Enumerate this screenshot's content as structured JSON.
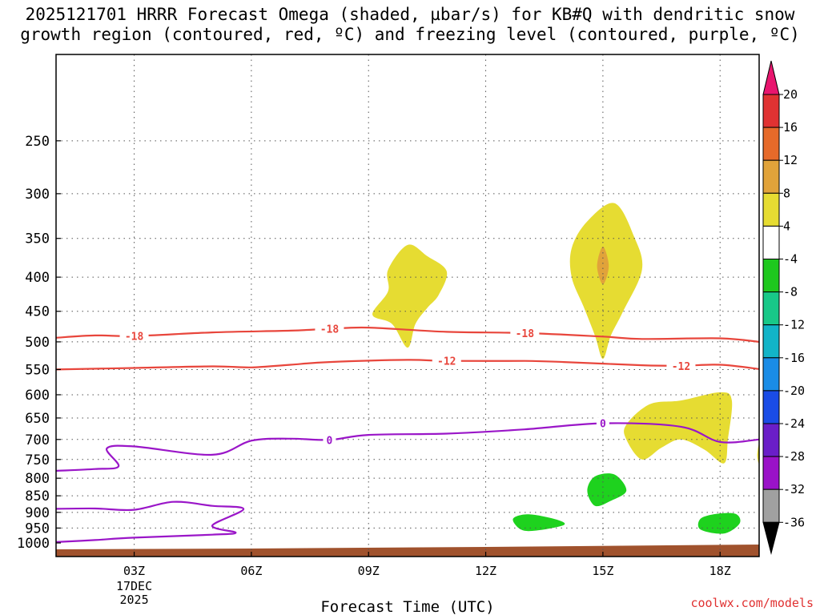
{
  "title": {
    "line1": "2025121701 HRRR Forecast Omega (shaded, µbar/s) for KB#Q with dendritic snow",
    "line2": "growth region (contoured, red, ºC) and freezing level (contoured, purple, ºC)"
  },
  "credit": "coolwx.com/models",
  "chart_data": {
    "type": "heatmap",
    "xlabel": "Forecast Time (UTC)",
    "ylabel": "",
    "x_units": "hours since 2025-12-17 00Z",
    "xlim": [
      1,
      19
    ],
    "ylim_hPa": [
      1000,
      200
    ],
    "x_ticks": [
      {
        "hour": 3,
        "label": "03Z",
        "sub": [
          "17DEC",
          "2025"
        ]
      },
      {
        "hour": 6,
        "label": "06Z"
      },
      {
        "hour": 9,
        "label": "09Z"
      },
      {
        "hour": 12,
        "label": "12Z"
      },
      {
        "hour": 15,
        "label": "15Z"
      },
      {
        "hour": 18,
        "label": "18Z"
      }
    ],
    "y_ticks": [
      250,
      300,
      350,
      400,
      450,
      500,
      550,
      600,
      650,
      700,
      750,
      800,
      850,
      900,
      950,
      1000
    ],
    "grid": true,
    "temperature_contours_red": [
      {
        "label": "-18",
        "label_at": [
          [
            3,
            490
          ],
          [
            8,
            478
          ],
          [
            13,
            485
          ]
        ],
        "points": [
          [
            1,
            493
          ],
          [
            2,
            489
          ],
          [
            3,
            490
          ],
          [
            5,
            484
          ],
          [
            7,
            481
          ],
          [
            8,
            478
          ],
          [
            9,
            476
          ],
          [
            11,
            483
          ],
          [
            13,
            485
          ],
          [
            15,
            491
          ],
          [
            16,
            495
          ],
          [
            18,
            494
          ],
          [
            19,
            500
          ]
        ]
      },
      {
        "label": "-12",
        "label_at": [
          [
            11,
            534
          ],
          [
            17,
            543
          ]
        ],
        "points": [
          [
            1,
            550
          ],
          [
            3,
            547
          ],
          [
            5,
            544
          ],
          [
            6,
            546
          ],
          [
            7,
            541
          ],
          [
            8,
            536
          ],
          [
            10,
            532
          ],
          [
            11,
            534
          ],
          [
            13,
            534
          ],
          [
            14,
            536
          ],
          [
            16,
            542
          ],
          [
            17,
            543
          ],
          [
            18,
            541
          ],
          [
            19,
            549
          ]
        ]
      }
    ],
    "freezing_level_purple": [
      {
        "label": "0",
        "label_at": [
          [
            8,
            701
          ],
          [
            15,
            662
          ]
        ],
        "points": [
          [
            1,
            780
          ],
          [
            2,
            775
          ],
          [
            2.6,
            768
          ],
          [
            2.3,
            722
          ],
          [
            3,
            717
          ],
          [
            5,
            738
          ],
          [
            6,
            703
          ],
          [
            7,
            698
          ],
          [
            8,
            701
          ],
          [
            9,
            689
          ],
          [
            11,
            686
          ],
          [
            13,
            676
          ],
          [
            15,
            662
          ],
          [
            17,
            670
          ],
          [
            18,
            706
          ],
          [
            19,
            700
          ]
        ]
      },
      {
        "label": "",
        "label_at": [],
        "points": [
          [
            1,
            889
          ],
          [
            2,
            888
          ],
          [
            3,
            892
          ],
          [
            4,
            868
          ],
          [
            5,
            880
          ],
          [
            5.8,
            890
          ],
          [
            5,
            942
          ],
          [
            5.6,
            965
          ],
          [
            5,
            972
          ],
          [
            3,
            982
          ],
          [
            2,
            990
          ],
          [
            1,
            997
          ]
        ]
      }
    ],
    "omega_shaded": [
      {
        "value_range": "4 to 8",
        "color": "#e6dc32",
        "polygon": [
          [
            9.1,
            455
          ],
          [
            9.5,
            420
          ],
          [
            9.5,
            390
          ],
          [
            10,
            358
          ],
          [
            10.5,
            372
          ],
          [
            11,
            392
          ],
          [
            10.8,
            425
          ],
          [
            10.5,
            445
          ],
          [
            10.2,
            470
          ],
          [
            10,
            510
          ],
          [
            9.6,
            470
          ]
        ]
      },
      {
        "value_range": "4 to 8",
        "color": "#e6dc32",
        "polygon": [
          [
            14.2,
            362
          ],
          [
            14.6,
            330
          ],
          [
            15.3,
            310
          ],
          [
            15.8,
            348
          ],
          [
            16,
            390
          ],
          [
            15.5,
            452
          ],
          [
            15.2,
            490
          ],
          [
            15,
            530
          ],
          [
            14.8,
            490
          ],
          [
            14.5,
            442
          ],
          [
            14.2,
            400
          ]
        ]
      },
      {
        "value_range": "8 to 12",
        "color": "#e1a33a",
        "polygon": [
          [
            15,
            360
          ],
          [
            15.15,
            385
          ],
          [
            15,
            410
          ],
          [
            14.85,
            385
          ]
        ]
      },
      {
        "value_range": "4 to 8",
        "color": "#e6dc32",
        "polygon": [
          [
            15.6,
            665
          ],
          [
            16.2,
            620
          ],
          [
            17,
            612
          ],
          [
            18,
            595
          ],
          [
            18.3,
            612
          ],
          [
            18.2,
            700
          ],
          [
            18.1,
            760
          ],
          [
            17.6,
            725
          ],
          [
            17,
            700
          ],
          [
            16.5,
            720
          ],
          [
            16,
            750
          ],
          [
            15.6,
            700
          ]
        ]
      },
      {
        "value_range": "4 to 8",
        "color": "#e6dc32",
        "polygon": [
          [
            19,
            760
          ],
          [
            18.95,
            740
          ],
          [
            19,
            710
          ]
        ]
      },
      {
        "value_range": "-8 to -4",
        "color": "#1ed21e",
        "polygon": [
          [
            14.6,
            835
          ],
          [
            14.8,
            795
          ],
          [
            15.3,
            790
          ],
          [
            15.6,
            835
          ],
          [
            15.2,
            865
          ],
          [
            14.8,
            880
          ]
        ]
      },
      {
        "value_range": "-8 to -4",
        "color": "#1ed21e",
        "polygon": [
          [
            12.7,
            920
          ],
          [
            13.1,
            906
          ],
          [
            13.8,
            922
          ],
          [
            14,
            940
          ],
          [
            13.3,
            958
          ],
          [
            12.9,
            955
          ]
        ]
      },
      {
        "value_range": "-8 to -4",
        "color": "#1ed21e",
        "polygon": [
          [
            17.5,
            920
          ],
          [
            17.9,
            905
          ],
          [
            18.4,
            905
          ],
          [
            18.5,
            935
          ],
          [
            18.1,
            968
          ],
          [
            17.5,
            955
          ]
        ]
      }
    ],
    "surface_shading_color": "#a0522d"
  },
  "colorbar": {
    "ticks": [
      "20",
      "16",
      "12",
      "8",
      "4",
      "-4",
      "-8",
      "-12",
      "-16",
      "-20",
      "-24",
      "-28",
      "-32",
      "-36"
    ],
    "colors": [
      "#e8156e",
      "#e03232",
      "#e66a2a",
      "#e1a33a",
      "#e6dc32",
      "#ffffff",
      "#1ec81e",
      "#18c888",
      "#12b4c8",
      "#1a8ce6",
      "#1a4ce6",
      "#6a1ec8",
      "#9a12c8",
      "#a0a0a0",
      "#000000"
    ]
  }
}
